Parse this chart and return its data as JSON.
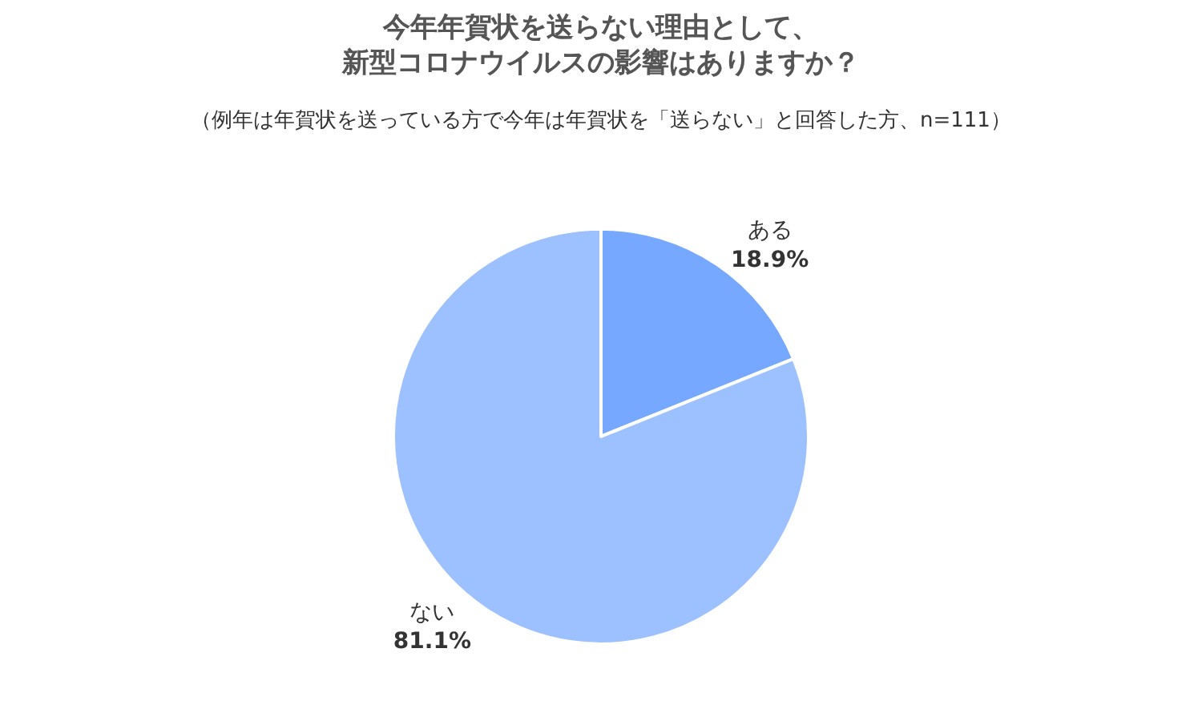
{
  "chart_data": {
    "type": "pie",
    "title": "今年年賀状を送らない理由として、新型コロナウイルスの影響はありますか？",
    "subtitle": "（例年は年賀状を送っている方で今年は年賀状を「送らない」と回答した方、n=111）",
    "categories": [
      "ある",
      "ない"
    ],
    "values": [
      18.9,
      81.1
    ],
    "colors": [
      "#76a8ff",
      "#9dc0ff"
    ],
    "value_labels": [
      "18.9%",
      "81.1%"
    ],
    "legend": false
  }
}
